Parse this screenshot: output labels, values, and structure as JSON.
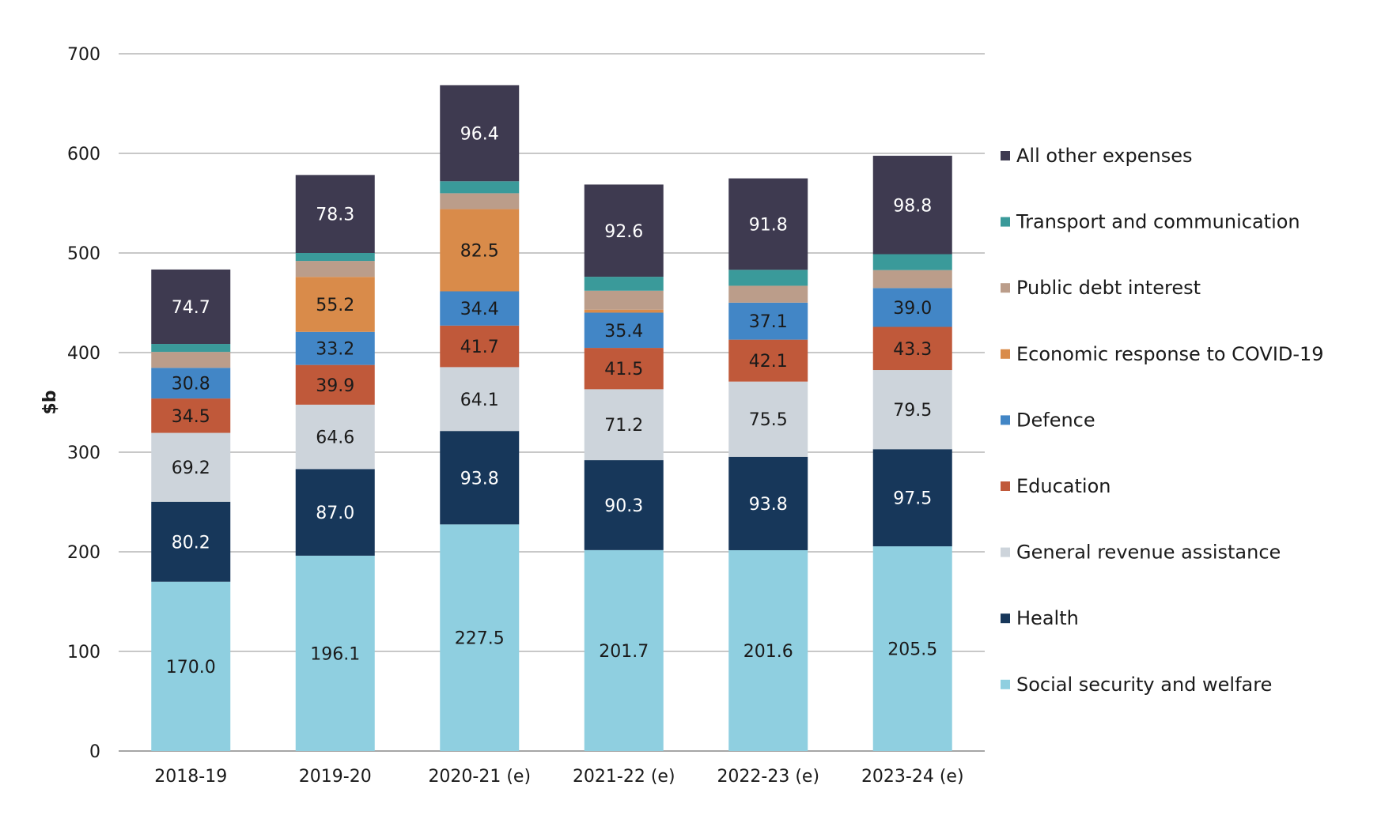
{
  "chart_data": {
    "type": "bar",
    "stacked": true,
    "title": "",
    "xlabel": "",
    "ylabel": "$b",
    "ylim": [
      0,
      700
    ],
    "yticks": [
      0,
      100,
      200,
      300,
      400,
      500,
      600,
      700
    ],
    "grid": true,
    "legend_position": "right",
    "categories": [
      "2018-19",
      "2019-20",
      "2020-21  (e)",
      "2021-22  (e)",
      "2022-23  (e)",
      "2023-24  (e)"
    ],
    "series": [
      {
        "name": "Social security and welfare",
        "color": "#8fcfe0",
        "label_color": "#1a1a1a",
        "values": [
          170.0,
          196.1,
          227.5,
          201.7,
          201.6,
          205.5
        ],
        "labels": [
          "170.0",
          "196.1",
          "227.5",
          "201.7",
          "201.6",
          "205.5"
        ]
      },
      {
        "name": "Health",
        "color": "#17375a",
        "label_color": "#ffffff",
        "values": [
          80.2,
          87.0,
          93.8,
          90.3,
          93.8,
          97.5
        ],
        "labels": [
          "80.2",
          "87.0",
          "93.8",
          "90.3",
          "93.8",
          "97.5"
        ]
      },
      {
        "name": "General revenue assistance",
        "color": "#cdd4db",
        "label_color": "#1a1a1a",
        "values": [
          69.2,
          64.6,
          64.1,
          71.2,
          75.5,
          79.5
        ],
        "labels": [
          "69.2",
          "64.6",
          "64.1",
          "71.2",
          "75.5",
          "79.5"
        ]
      },
      {
        "name": "Education",
        "color": "#c0593a",
        "label_color": "#1a1a1a",
        "values": [
          34.5,
          39.9,
          41.7,
          41.5,
          42.1,
          43.3
        ],
        "labels": [
          "34.5",
          "39.9",
          "41.7",
          "41.5",
          "42.1",
          "43.3"
        ]
      },
      {
        "name": "Defence",
        "color": "#4286c6",
        "label_color": "#1a1a1a",
        "values": [
          30.8,
          33.2,
          34.4,
          35.4,
          37.1,
          39.0
        ],
        "labels": [
          "30.8",
          "33.2",
          "34.4",
          "35.4",
          "37.1",
          "39.0"
        ]
      },
      {
        "name": "Economic response to COVID-19",
        "color": "#d98b4a",
        "label_color": "#1a1a1a",
        "values": [
          0,
          55.2,
          82.5,
          3,
          0,
          0
        ],
        "labels": [
          "",
          "55.2",
          "82.5",
          "",
          "",
          ""
        ]
      },
      {
        "name": "Public debt interest",
        "color": "#bb9d8a",
        "label_color": "#1a1a1a",
        "values": [
          16,
          16,
          16,
          19,
          17,
          18
        ],
        "labels": [
          "",
          "",
          "",
          "",
          "",
          ""
        ]
      },
      {
        "name": "Transport and communication",
        "color": "#3a9a9a",
        "label_color": "#1a1a1a",
        "values": [
          8,
          8,
          12,
          14,
          16,
          16
        ],
        "labels": [
          "",
          "",
          "",
          "",
          "",
          ""
        ]
      },
      {
        "name": "All other expenses",
        "color": "#3e3a50",
        "label_color": "#ffffff",
        "values": [
          74.7,
          78.3,
          96.4,
          92.6,
          91.8,
          98.8
        ],
        "labels": [
          "74.7",
          "78.3",
          "96.4",
          "92.6",
          "91.8",
          "98.8"
        ]
      }
    ],
    "legend_order": [
      "All other expenses",
      "Transport and communication",
      "Public debt interest",
      "Economic response to COVID-19",
      "Defence",
      "Education",
      "General revenue assistance",
      "Health",
      "Social security and welfare"
    ]
  }
}
